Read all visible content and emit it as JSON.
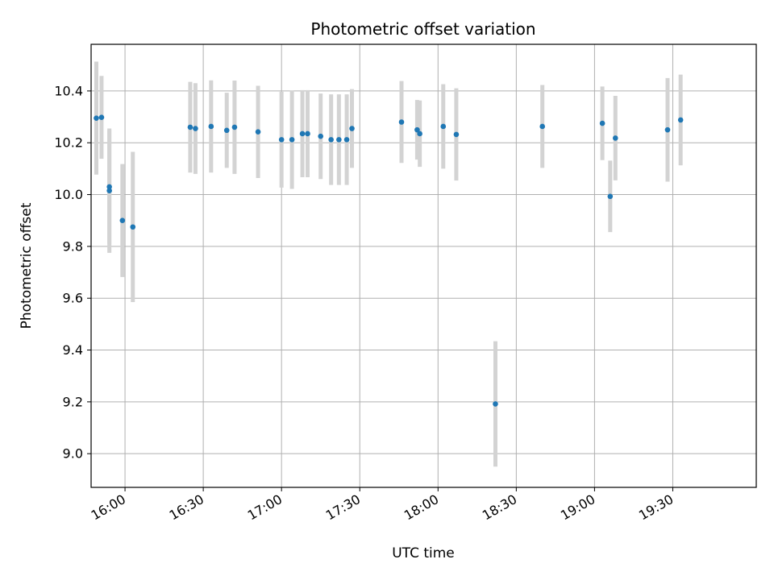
{
  "chart_data": {
    "type": "scatter",
    "title": "Photometric offset variation",
    "xlabel": "UTC time",
    "ylabel": "Photometric offset",
    "x_ticks": [
      "16:00",
      "16:30",
      "17:00",
      "17:30",
      "18:00",
      "18:30",
      "19:00",
      "19:30"
    ],
    "y_ticks": [
      "9.0",
      "9.2",
      "9.4",
      "9.6",
      "9.8",
      "10.0",
      "10.2",
      "10.4"
    ],
    "xlim": [
      "15:47",
      "20:02"
    ],
    "ylim": [
      8.87,
      10.58
    ],
    "grid": true,
    "colors": {
      "point": "#1f77b4",
      "errorbar": "#d3d3d3",
      "grid": "#b0b0b0"
    },
    "points": [
      {
        "x": "15:49",
        "y": 10.295,
        "err": 0.218
      },
      {
        "x": "15:51",
        "y": 10.298,
        "err": 0.16
      },
      {
        "x": "15:54",
        "y": 10.015,
        "err": 0.24
      },
      {
        "x": "15:54",
        "y": 10.03,
        "err": 0.22
      },
      {
        "x": "15:59",
        "y": 9.9,
        "err": 0.218
      },
      {
        "x": "16:03",
        "y": 9.875,
        "err": 0.29
      },
      {
        "x": "16:25",
        "y": 10.26,
        "err": 0.175
      },
      {
        "x": "16:27",
        "y": 10.255,
        "err": 0.175
      },
      {
        "x": "16:33",
        "y": 10.263,
        "err": 0.178
      },
      {
        "x": "16:39",
        "y": 10.248,
        "err": 0.145
      },
      {
        "x": "16:42",
        "y": 10.26,
        "err": 0.18
      },
      {
        "x": "16:51",
        "y": 10.242,
        "err": 0.178
      },
      {
        "x": "17:00",
        "y": 10.212,
        "err": 0.185
      },
      {
        "x": "17:04",
        "y": 10.212,
        "err": 0.19
      },
      {
        "x": "17:08",
        "y": 10.235,
        "err": 0.168
      },
      {
        "x": "17:10",
        "y": 10.235,
        "err": 0.168
      },
      {
        "x": "17:15",
        "y": 10.225,
        "err": 0.165
      },
      {
        "x": "17:19",
        "y": 10.212,
        "err": 0.175
      },
      {
        "x": "17:22",
        "y": 10.212,
        "err": 0.175
      },
      {
        "x": "17:25",
        "y": 10.212,
        "err": 0.175
      },
      {
        "x": "17:27",
        "y": 10.255,
        "err": 0.152
      },
      {
        "x": "17:46",
        "y": 10.28,
        "err": 0.158
      },
      {
        "x": "17:52",
        "y": 10.25,
        "err": 0.115
      },
      {
        "x": "17:53",
        "y": 10.235,
        "err": 0.128
      },
      {
        "x": "18:02",
        "y": 10.263,
        "err": 0.163
      },
      {
        "x": "18:07",
        "y": 10.232,
        "err": 0.178
      },
      {
        "x": "18:22",
        "y": 9.192,
        "err": 0.242
      },
      {
        "x": "18:40",
        "y": 10.263,
        "err": 0.16
      },
      {
        "x": "19:03",
        "y": 10.275,
        "err": 0.142
      },
      {
        "x": "19:06",
        "y": 9.993,
        "err": 0.138
      },
      {
        "x": "19:08",
        "y": 10.218,
        "err": 0.163
      },
      {
        "x": "19:28",
        "y": 10.25,
        "err": 0.2
      },
      {
        "x": "19:33",
        "y": 10.288,
        "err": 0.175
      }
    ]
  }
}
